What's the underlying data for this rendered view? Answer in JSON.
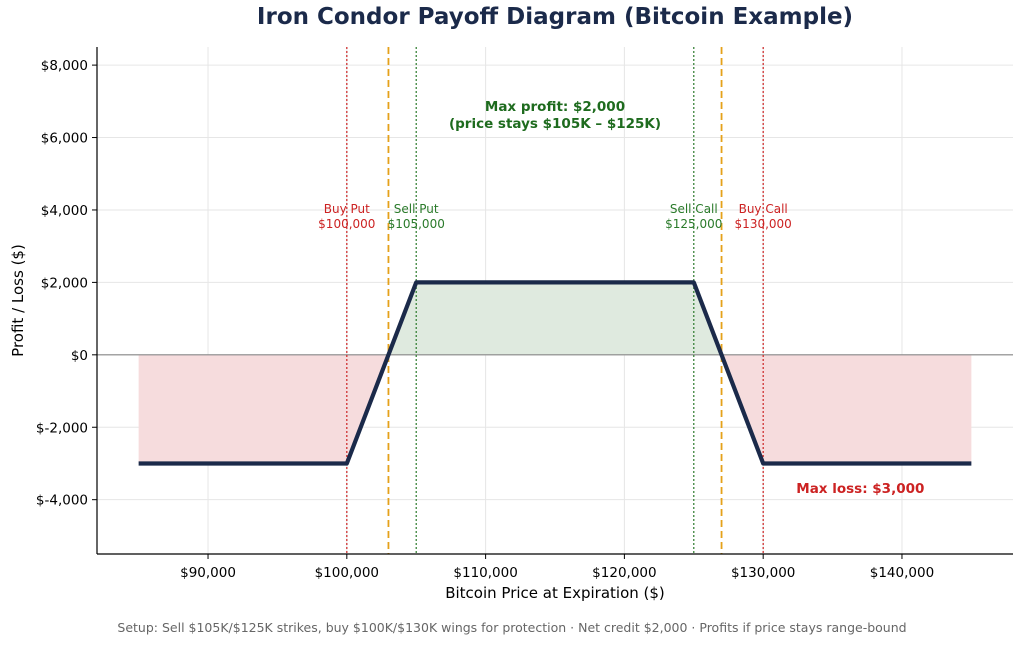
{
  "chart_data": {
    "type": "line",
    "title": "Iron Condor Payoff Diagram (Bitcoin Example)",
    "xlabel": "Bitcoin Price at Expiration ($)",
    "ylabel": "Profit / Loss ($)",
    "xlim": [
      82000,
      148000
    ],
    "ylim": [
      -5500,
      8500
    ],
    "grid": true,
    "x_ticks": [
      90000,
      100000,
      110000,
      120000,
      130000,
      140000
    ],
    "x_tick_labels": [
      "$90,000",
      "$100,000",
      "$110,000",
      "$120,000",
      "$130,000",
      "$140,000"
    ],
    "y_ticks": [
      8000,
      6000,
      4000,
      2000,
      0,
      -2000,
      -4000
    ],
    "y_tick_labels": [
      "$8,000",
      "$6,000",
      "$4,000",
      "$2,000",
      "$0",
      "$-2,000",
      "$-4,000"
    ],
    "series": [
      {
        "x": [
          85000,
          100000,
          105000,
          125000,
          130000,
          145000
        ],
        "y": [
          -3000,
          -3000,
          2000,
          2000,
          -3000,
          -3000
        ],
        "color": "#1b2a4a"
      }
    ],
    "fill_profit_color": "#dfeadf",
    "fill_loss_color": "#f6dcdd",
    "zero_line_color": "#888888",
    "vlines": [
      {
        "x": 100000,
        "color": "#cc2222",
        "style": "dotted",
        "label_line1": "Buy Put",
        "label_line2": "$100,000",
        "label_y": 3800
      },
      {
        "x": 105000,
        "color": "#2a7a2a",
        "style": "dotted",
        "label_line1": "Sell Put",
        "label_line2": "$105,000",
        "label_y": 3800
      },
      {
        "x": 125000,
        "color": "#2a7a2a",
        "style": "dotted",
        "label_line1": "Sell Call",
        "label_line2": "$125,000",
        "label_y": 3800
      },
      {
        "x": 130000,
        "color": "#cc2222",
        "style": "dotted",
        "label_line1": "Buy Call",
        "label_line2": "$130,000",
        "label_y": 3800
      },
      {
        "x": 103000,
        "color": "#e5a11a",
        "style": "dashed"
      },
      {
        "x": 127000,
        "color": "#e5a11a",
        "style": "dashed"
      }
    ],
    "annotations": [
      {
        "line1": "Max profit: $2,000",
        "line2": "(price stays $105K – $125K)",
        "x": 115000,
        "y": 6400,
        "color": "#1e6b1e",
        "bold": true
      },
      {
        "line1": "Max loss: $3,000",
        "x": 137000,
        "y": -4150,
        "color": "#cc2222",
        "bold": true
      }
    ]
  },
  "footer": "Setup: Sell $105K/$125K strikes, buy $100K/$130K wings for protection  ·  Net credit $2,000  ·  Profits if price stays range-bound"
}
